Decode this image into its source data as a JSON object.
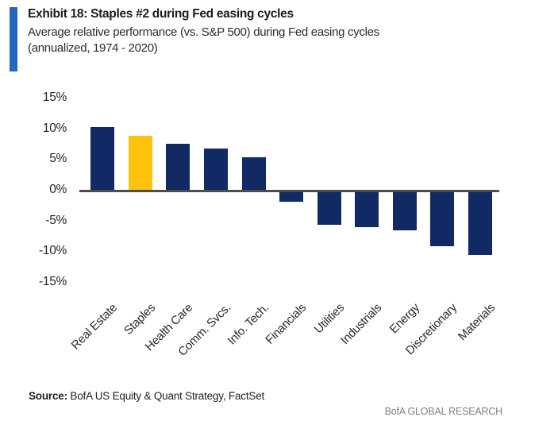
{
  "header": {
    "title": "Exhibit 18: Staples #2 during Fed easing cycles",
    "subtitle_line1": "Average relative performance (vs. S&P 500) during Fed easing cycles",
    "subtitle_line2": "(annualized, 1974 - 2020)"
  },
  "chart_data": {
    "type": "bar",
    "title": "Exhibit 18: Staples #2 during Fed easing cycles",
    "subtitle": "Average relative performance (vs. S&P 500) during Fed easing cycles (annualized, 1974 - 2020)",
    "categories": [
      "Real Estate",
      "Staples",
      "Health Care",
      "Comm. Svcs.",
      "Info. Tech.",
      "Financials",
      "Utilities",
      "Industrials",
      "Energy",
      "Discretionary",
      "Materials"
    ],
    "values": [
      10.4,
      8.9,
      7.6,
      6.8,
      5.4,
      -1.8,
      -5.6,
      -6.0,
      -6.4,
      -9.0,
      -10.5
    ],
    "unit": "%",
    "xlabel": "",
    "ylabel": "",
    "ylim": [
      -15,
      15
    ],
    "yticks": [
      15,
      10,
      5,
      0,
      -5,
      -10,
      -15
    ],
    "ytick_labels": [
      "15%",
      "10%",
      "5%",
      "0%",
      "-5%",
      "-10%",
      "-15%"
    ],
    "grid": false,
    "legend": null,
    "highlight_category": "Staples",
    "bar_color": "#122a64",
    "highlight_color": "#ffc20d",
    "axis_line_color": "#4d4d4d"
  },
  "footer": {
    "source_label": "Source:",
    "source_text": " BofA US Equity & Quant Strategy, FactSet",
    "brand": "BofA GLOBAL RESEARCH"
  },
  "colors": {
    "accent_bar": "#2565c7",
    "bar_navy": "#122a64",
    "bar_gold": "#ffc20d",
    "axis_line": "#4d4d4d",
    "brand_text": "#808080"
  }
}
